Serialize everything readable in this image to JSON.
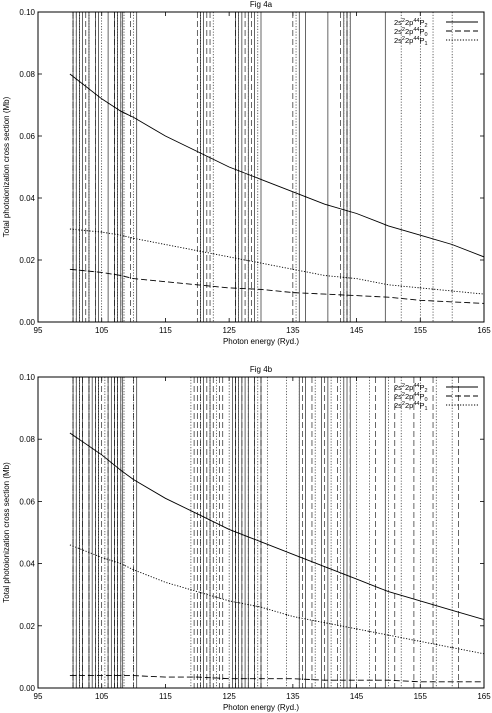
{
  "chart_data": [
    {
      "type": "line",
      "title": "Fig 4a",
      "xlabel": "Photon energy (Ryd.)",
      "ylabel": "Total photoionization cross section (Mb)",
      "xlim": [
        95,
        165
      ],
      "ylim": [
        0,
        0.1
      ],
      "xticks": [
        95,
        105,
        115,
        125,
        135,
        145,
        155,
        165
      ],
      "xtick_labels": [
        "95",
        "105",
        "115",
        "125",
        "135",
        "145",
        "155",
        "165"
      ],
      "yticks": [
        0,
        0.02,
        0.04,
        0.06,
        0.08,
        0.1
      ],
      "ytick_labels": [
        "0.00",
        "0.02",
        "0.04",
        "0.06",
        "0.08",
        "0.10"
      ],
      "legend_position": "top-right",
      "series": [
        {
          "name": "2s2p4P2",
          "label": {
            "a": "2s",
            "s1": "2",
            "b": "2p",
            "s2": "4",
            "c": "4",
            "d": "P",
            "sub": "2"
          },
          "style": "solid",
          "x": [
            100,
            105,
            108,
            110,
            115,
            120,
            125,
            130,
            135,
            140,
            145,
            150,
            155,
            160,
            165
          ],
          "y": [
            0.08,
            0.072,
            0.068,
            0.066,
            0.06,
            0.055,
            0.05,
            0.046,
            0.042,
            0.038,
            0.035,
            0.031,
            0.028,
            0.025,
            0.021
          ]
        },
        {
          "name": "2s2p4P0",
          "label": {
            "a": "2s",
            "s1": "2",
            "b": "2p",
            "s2": "4",
            "c": "4",
            "d": "P",
            "sub": "0"
          },
          "style": "dashed",
          "x": [
            100,
            105,
            108,
            110,
            115,
            120,
            125,
            130,
            135,
            140,
            145,
            150,
            155,
            160,
            165
          ],
          "y": [
            0.017,
            0.016,
            0.015,
            0.014,
            0.013,
            0.012,
            0.011,
            0.0105,
            0.0095,
            0.009,
            0.0085,
            0.008,
            0.007,
            0.0065,
            0.006
          ]
        },
        {
          "name": "2s2p4P1",
          "label": {
            "a": "2s",
            "s1": "2",
            "b": "2p",
            "s2": "4",
            "c": "4",
            "d": "P",
            "sub": "1"
          },
          "style": "dotted",
          "x": [
            100,
            105,
            108,
            110,
            115,
            120,
            125,
            130,
            135,
            140,
            145,
            150,
            155,
            160,
            165
          ],
          "y": [
            0.03,
            0.029,
            0.028,
            0.027,
            0.025,
            0.023,
            0.021,
            0.019,
            0.017,
            0.015,
            0.014,
            0.012,
            0.011,
            0.01,
            0.009
          ]
        }
      ],
      "resonances": [
        {
          "series": 0,
          "x": [
            100.5,
            101,
            101.5,
            102,
            103,
            104,
            104.5,
            106,
            107,
            107.5,
            108,
            108.3,
            110.5,
            120.5,
            121,
            126,
            126.5,
            127,
            128,
            129,
            130,
            136,
            137,
            140.5,
            143,
            143.5,
            144,
            149.5
          ]
        },
        {
          "series": 1,
          "x": [
            100.5,
            101,
            102.5,
            104,
            107,
            108,
            109.5,
            120,
            121.5,
            122,
            126,
            127.5,
            128.5,
            135,
            142.5,
            143.5
          ]
        },
        {
          "series": 2,
          "x": [
            100.5,
            101.5,
            103,
            105,
            107.5,
            108.5,
            110,
            120.5,
            122.5,
            126.5,
            128,
            129.5,
            135.5,
            143,
            144,
            152,
            155,
            157,
            160
          ]
        }
      ]
    },
    {
      "type": "line",
      "title": "Fig 4b",
      "xlabel": "Photon energy (Ryd.)",
      "ylabel": "Total photoionization cross section (Mb)",
      "xlim": [
        95,
        165
      ],
      "ylim": [
        0,
        0.1
      ],
      "xticks": [
        95,
        105,
        115,
        125,
        135,
        145,
        155,
        165
      ],
      "xtick_labels": [
        "95",
        "105",
        "115",
        "125",
        "135",
        "145",
        "155",
        "165"
      ],
      "yticks": [
        0,
        0.02,
        0.04,
        0.06,
        0.08,
        0.1
      ],
      "ytick_labels": [
        "0.00",
        "0.02",
        "0.04",
        "0.06",
        "0.08",
        "0.10"
      ],
      "legend_position": "top-right",
      "series": [
        {
          "name": "2s2p4P2",
          "label": {
            "a": "2s",
            "s1": "2",
            "b": "2p",
            "s2": "4",
            "c": "4",
            "d": "P",
            "sub": "2"
          },
          "style": "solid",
          "x": [
            100,
            105,
            108,
            110,
            115,
            120,
            125,
            130,
            135,
            140,
            145,
            150,
            155,
            160,
            165
          ],
          "y": [
            0.082,
            0.075,
            0.07,
            0.067,
            0.061,
            0.056,
            0.051,
            0.047,
            0.043,
            0.039,
            0.035,
            0.031,
            0.028,
            0.025,
            0.022
          ]
        },
        {
          "name": "2s2p4P0",
          "label": {
            "a": "2s",
            "s1": "2",
            "b": "2p",
            "s2": "4",
            "c": "4",
            "d": "P",
            "sub": "0"
          },
          "style": "dashed",
          "x": [
            100,
            105,
            110,
            115,
            120,
            125,
            130,
            135,
            140,
            145,
            150,
            155,
            160,
            165
          ],
          "y": [
            0.004,
            0.004,
            0.004,
            0.0035,
            0.0035,
            0.003,
            0.003,
            0.003,
            0.0025,
            0.0025,
            0.0025,
            0.002,
            0.002,
            0.002
          ]
        },
        {
          "name": "2s2p4P1",
          "label": {
            "a": "2s",
            "s1": "2",
            "b": "2p",
            "s2": "4",
            "c": "4",
            "d": "P",
            "sub": "1"
          },
          "style": "dotted",
          "x": [
            100,
            105,
            108,
            110,
            115,
            120,
            125,
            130,
            135,
            140,
            145,
            150,
            155,
            160,
            165
          ],
          "y": [
            0.046,
            0.042,
            0.04,
            0.038,
            0.034,
            0.031,
            0.028,
            0.026,
            0.023,
            0.021,
            0.019,
            0.017,
            0.015,
            0.013,
            0.011
          ]
        }
      ],
      "resonances": [
        {
          "series": 0,
          "x": [
            100.5,
            101,
            101.5,
            102,
            103,
            103.5,
            104,
            104.5,
            106,
            106.5,
            107,
            107.5,
            108,
            108.3,
            110.5,
            121,
            122,
            125.5,
            126,
            126.5,
            127,
            127.5,
            128,
            129,
            130,
            136,
            137,
            139.5,
            140.5,
            143,
            143.5,
            144,
            149.5
          ]
        },
        {
          "series": 1,
          "x": [
            100.5,
            101,
            102,
            103,
            104,
            105,
            106,
            107,
            107.5,
            108,
            110,
            119.5,
            120,
            120.5,
            121.5,
            122.5,
            123.5,
            124,
            126,
            127,
            128,
            129,
            130,
            136.5,
            138,
            140,
            142,
            144,
            148,
            151,
            154,
            157,
            161
          ]
        },
        {
          "series": 2,
          "x": [
            100.5,
            101.5,
            103,
            104.5,
            105.5,
            107.5,
            108.5,
            110,
            119,
            120.5,
            122,
            123,
            125,
            126.5,
            128,
            129.5,
            131,
            134,
            136,
            138.5,
            141,
            142.5,
            145,
            147,
            150,
            152,
            155,
            157.5,
            160
          ]
        }
      ]
    }
  ]
}
